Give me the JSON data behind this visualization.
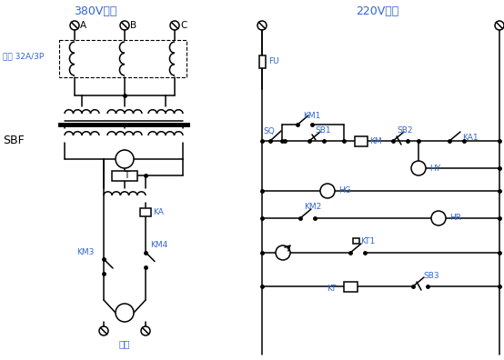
{
  "title_left": "380V输入",
  "title_right": "220V输入",
  "label_power": "电源 32A/3P",
  "label_sbf": "SBF",
  "label_output": "输出",
  "text_color": "#3366cc",
  "line_color": "#000000",
  "bg_color": "#ffffff",
  "fig_width": 5.54,
  "fig_height": 3.96
}
